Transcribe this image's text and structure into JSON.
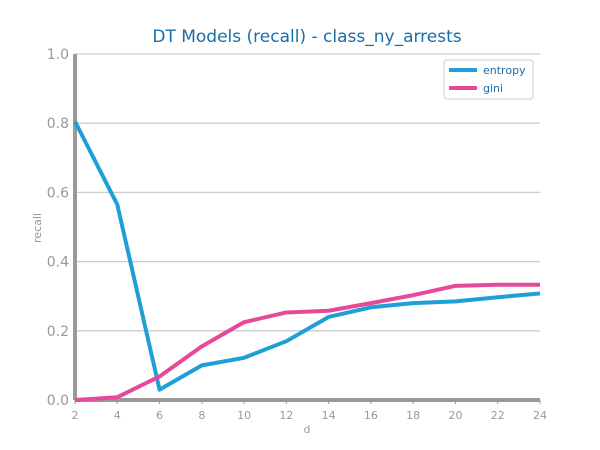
{
  "chart_data": {
    "type": "line",
    "title": "DT Models (recall) - class_ny_arrests",
    "xlabel": "d",
    "ylabel": "recall",
    "x": [
      2,
      4,
      6,
      8,
      10,
      12,
      14,
      16,
      18,
      20,
      22,
      24
    ],
    "xlim": [
      2,
      24
    ],
    "ylim": [
      0,
      1
    ],
    "yticks": [
      "0.0",
      "0.2",
      "0.4",
      "0.6",
      "0.8",
      "1.0"
    ],
    "xticks": [
      "2",
      "4",
      "6",
      "8",
      "10",
      "12",
      "14",
      "16",
      "18",
      "20",
      "22",
      "24"
    ],
    "grid": "horizontal",
    "legend_position": "top-right",
    "series": [
      {
        "name": "entropy",
        "color": "#1f9fd8",
        "values": [
          0.805,
          0.565,
          0.03,
          0.1,
          0.122,
          0.17,
          0.24,
          0.268,
          0.28,
          0.285,
          0.297,
          0.308
        ]
      },
      {
        "name": "gini",
        "color": "#e8489a",
        "values": [
          0.0,
          0.008,
          0.068,
          0.155,
          0.225,
          0.253,
          0.258,
          0.28,
          0.303,
          0.33,
          0.333,
          0.333
        ]
      }
    ],
    "colors": {
      "title": "#1a6ea8",
      "axis": "#999999",
      "grid": "#cccccc",
      "tick_text": "#999999",
      "legend_text": "#1a6ea8"
    }
  }
}
